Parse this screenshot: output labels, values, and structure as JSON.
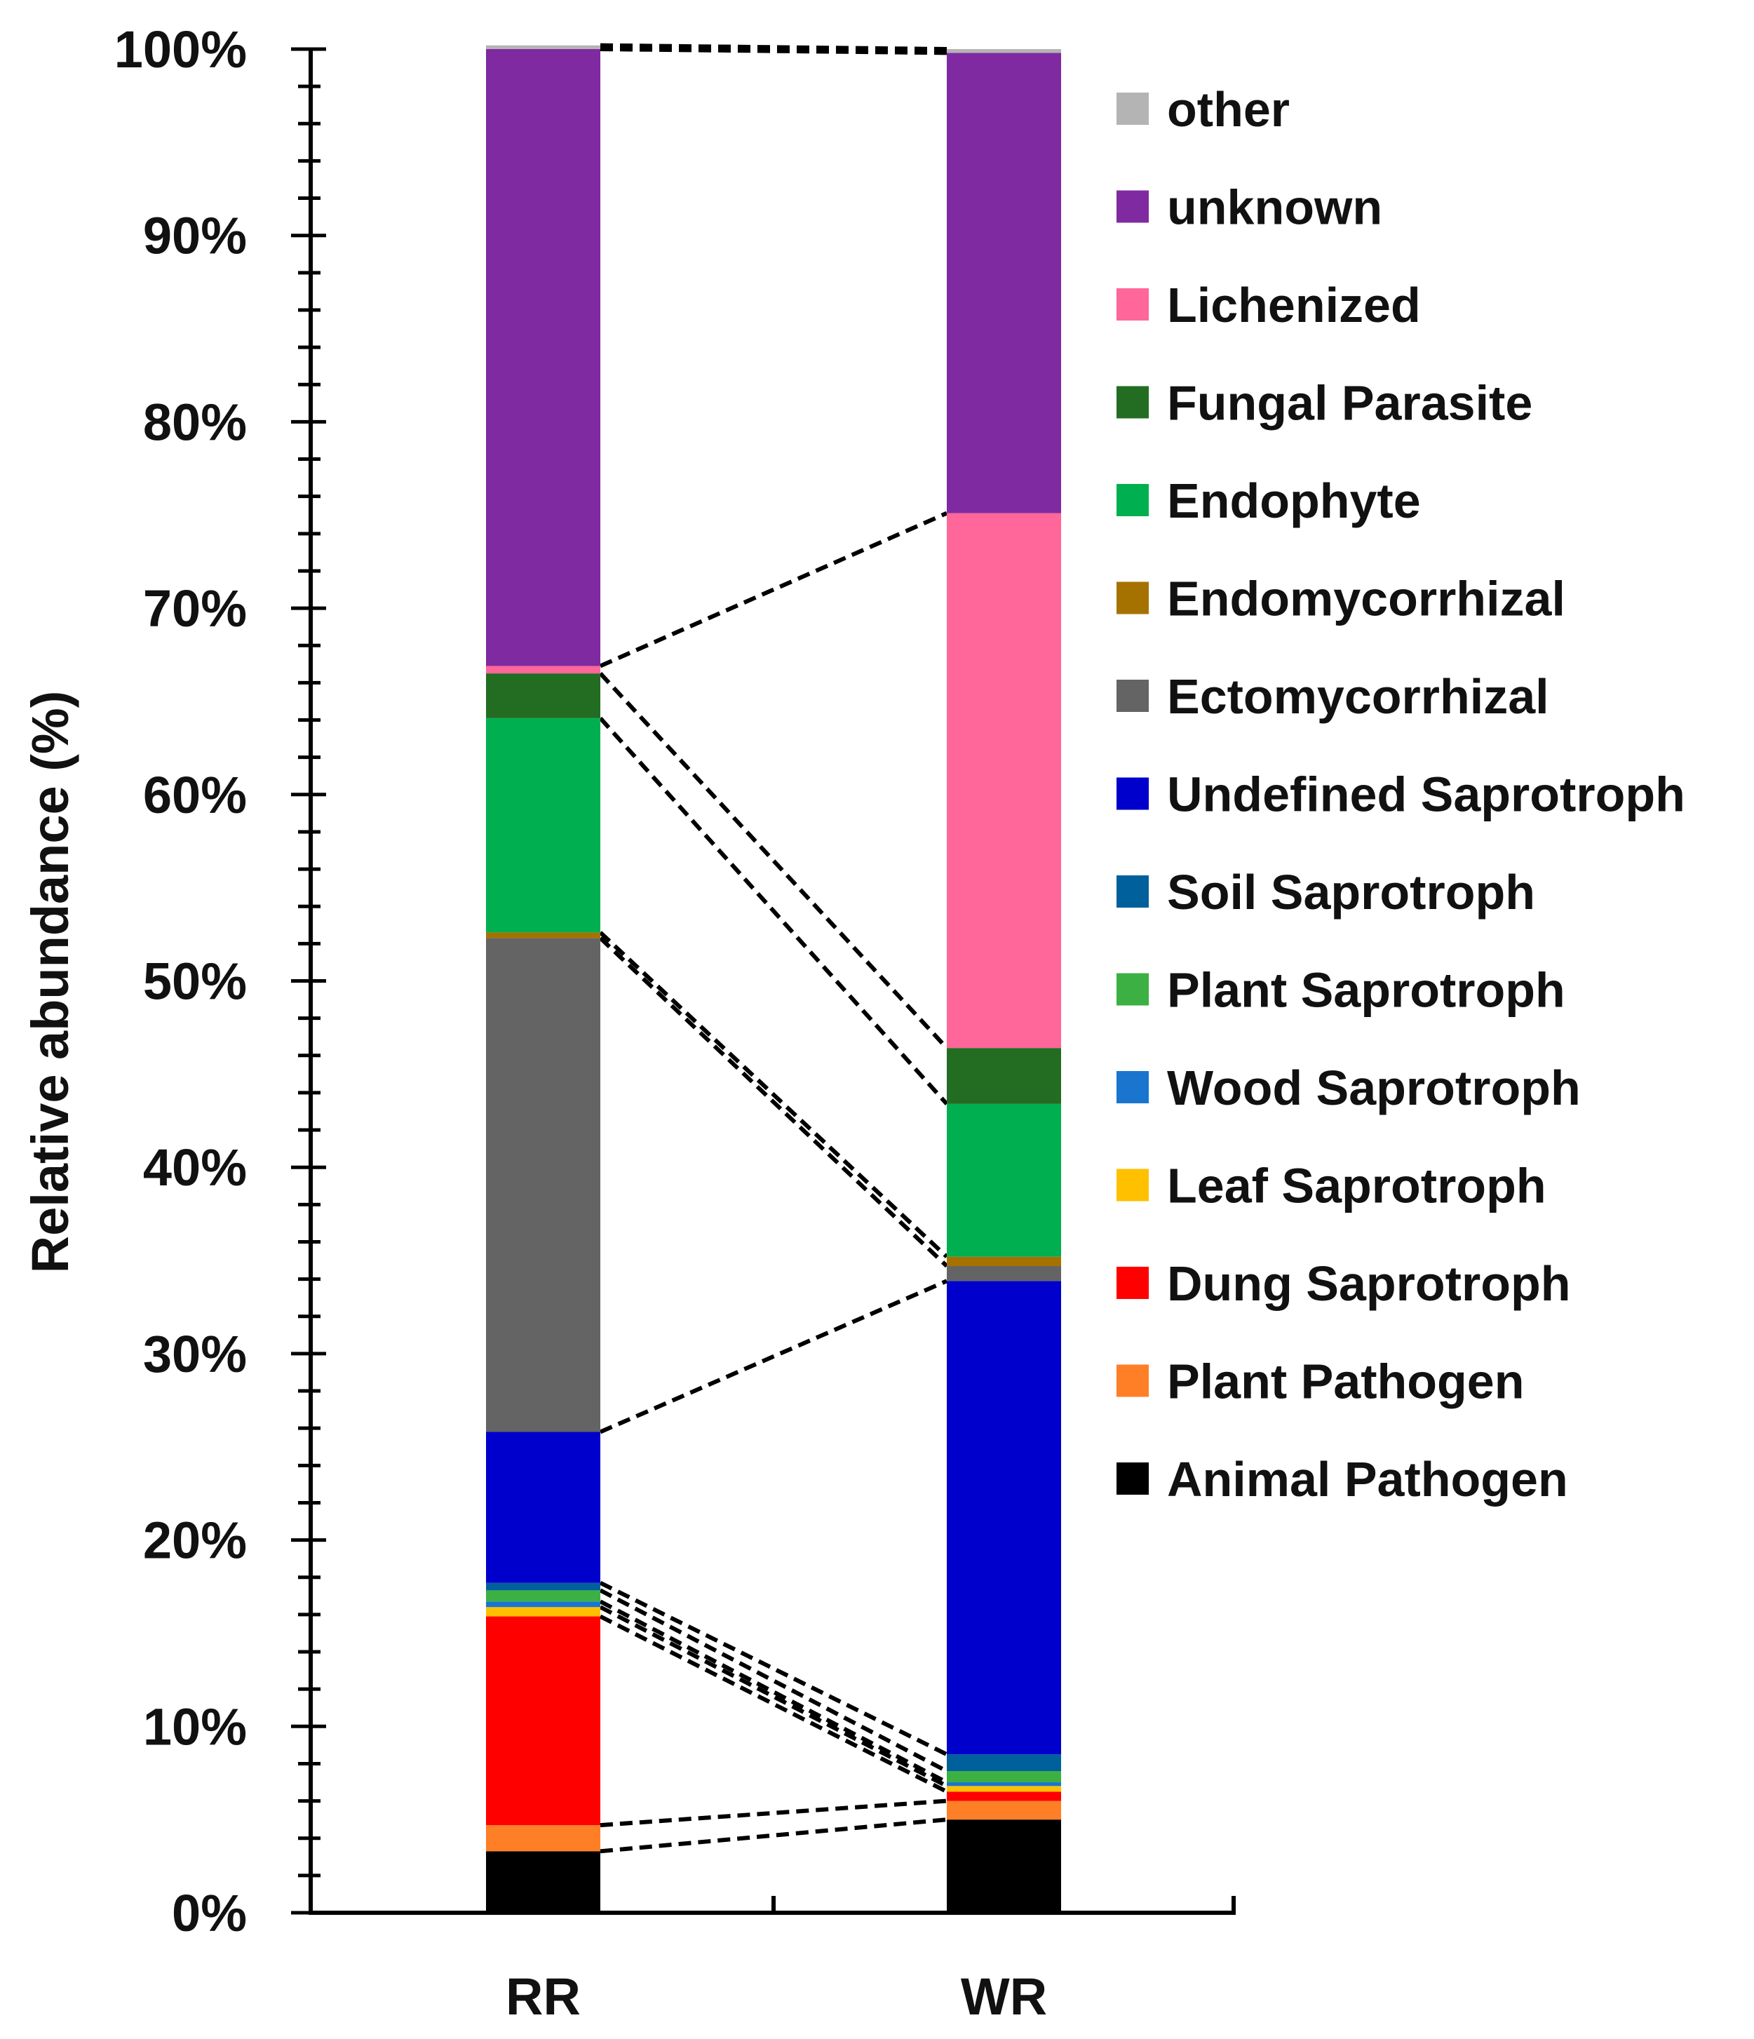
{
  "chart_data": {
    "type": "bar",
    "stacked": true,
    "ylabel": "Relative abundance (%)",
    "xlabel": "",
    "ylim": [
      0,
      100
    ],
    "ytick_step": 10,
    "ytick_minor_step": 2,
    "ytick_labels": [
      "0%",
      "10%",
      "20%",
      "30%",
      "40%",
      "50%",
      "60%",
      "70%",
      "80%",
      "90%",
      "100%"
    ],
    "categories": [
      "RR",
      "WR"
    ],
    "connector_style": "dashed",
    "legend_position": "right",
    "series": [
      {
        "name": "Animal Pathogen",
        "color": "#000000",
        "values": [
          3.3,
          5.0
        ]
      },
      {
        "name": "Plant Pathogen",
        "color": "#ff7f27",
        "values": [
          1.4,
          1.0
        ]
      },
      {
        "name": "Dung Saprotroph",
        "color": "#ff0000",
        "values": [
          11.2,
          0.5
        ]
      },
      {
        "name": "Leaf Saprotroph",
        "color": "#ffc000",
        "values": [
          0.5,
          0.3
        ]
      },
      {
        "name": "Wood Saprotroph",
        "color": "#1a75cf",
        "values": [
          0.3,
          0.2
        ]
      },
      {
        "name": "Plant Saprotroph",
        "color": "#3cb043",
        "values": [
          0.6,
          0.6
        ]
      },
      {
        "name": "Soil Saprotroph",
        "color": "#00609c",
        "values": [
          0.4,
          0.9
        ]
      },
      {
        "name": "Undefined Saprotroph",
        "color": "#0000cc",
        "values": [
          8.1,
          25.4
        ]
      },
      {
        "name": "Ectomycorrhizal",
        "color": "#646464",
        "values": [
          26.5,
          0.8
        ]
      },
      {
        "name": "Endomycorrhizal",
        "color": "#a57200",
        "values": [
          0.3,
          0.5
        ]
      },
      {
        "name": "Endophyte",
        "color": "#00b050",
        "values": [
          11.5,
          8.2
        ]
      },
      {
        "name": "Fungal Parasite",
        "color": "#236d23",
        "values": [
          2.4,
          3.0
        ]
      },
      {
        "name": "Lichenized",
        "color": "#ff6699",
        "values": [
          0.4,
          28.7
        ]
      },
      {
        "name": "unknown",
        "color": "#7f2aa0",
        "values": [
          33.1,
          24.7
        ]
      },
      {
        "name": "other",
        "color": "#b4b4b4",
        "values": [
          0.2,
          0.2
        ]
      }
    ],
    "legend_order": [
      "other",
      "unknown",
      "Lichenized",
      "Fungal Parasite",
      "Endophyte",
      "Endomycorrhizal",
      "Ectomycorrhizal",
      "Undefined Saprotroph",
      "Soil Saprotroph",
      "Plant Saprotroph",
      "Wood Saprotroph",
      "Leaf Saprotroph",
      "Dung Saprotroph",
      "Plant Pathogen",
      "Animal Pathogen"
    ]
  }
}
